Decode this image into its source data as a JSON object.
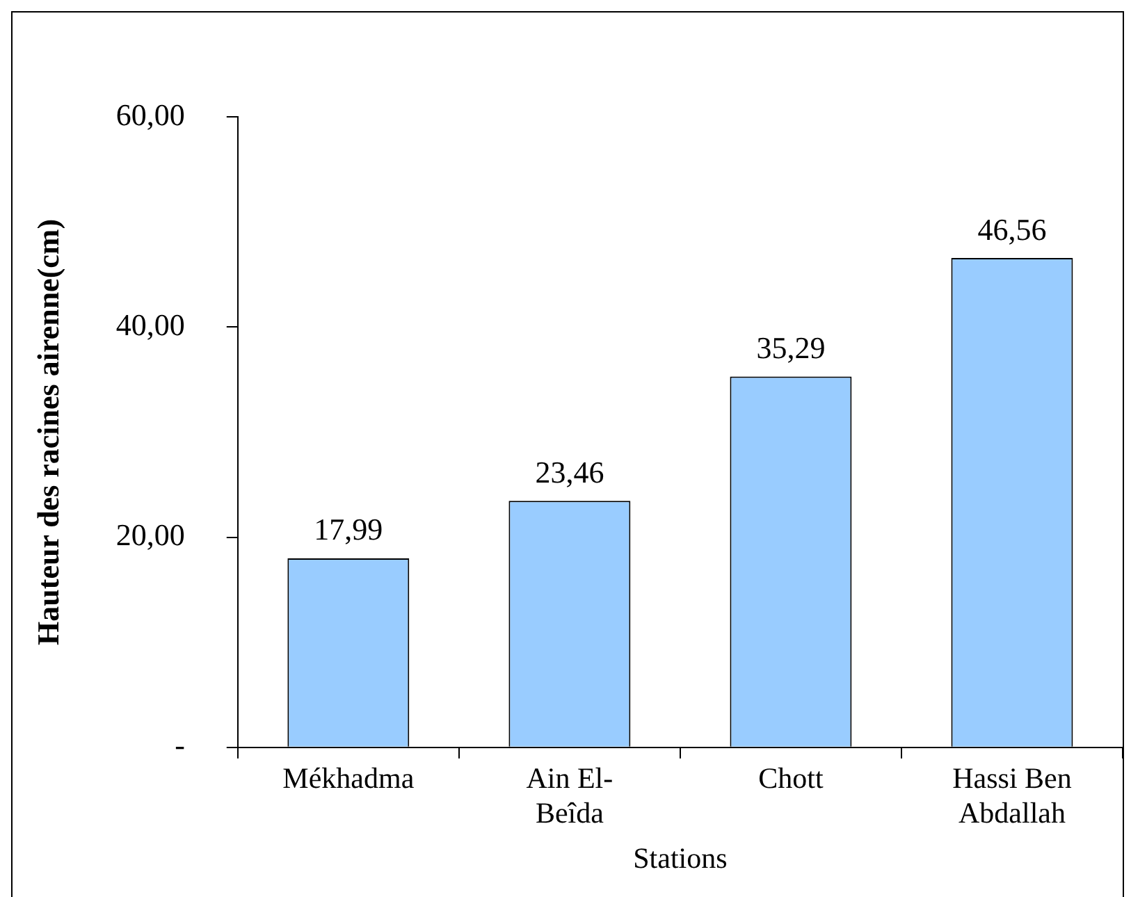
{
  "chart_data": {
    "type": "bar",
    "xlabel": "Stations",
    "ylabel": "Hauteur des racines airenne(cm)",
    "categories": [
      "Mékhadma",
      "Ain El-Beîda",
      "Chott",
      "Hassi Ben Abdallah"
    ],
    "values": [
      17.99,
      23.46,
      35.29,
      46.56
    ],
    "value_labels": [
      "17,99",
      "23,46",
      "35,29",
      "46,56"
    ],
    "color": "#99ccff",
    "ylim": [
      0,
      60
    ],
    "yticks": [
      {
        "value": 0,
        "label": "-"
      },
      {
        "value": 20,
        "label": "20,00"
      },
      {
        "value": 40,
        "label": "40,00"
      },
      {
        "value": 60,
        "label": "60,00"
      }
    ],
    "grid": false,
    "legend": false
  }
}
